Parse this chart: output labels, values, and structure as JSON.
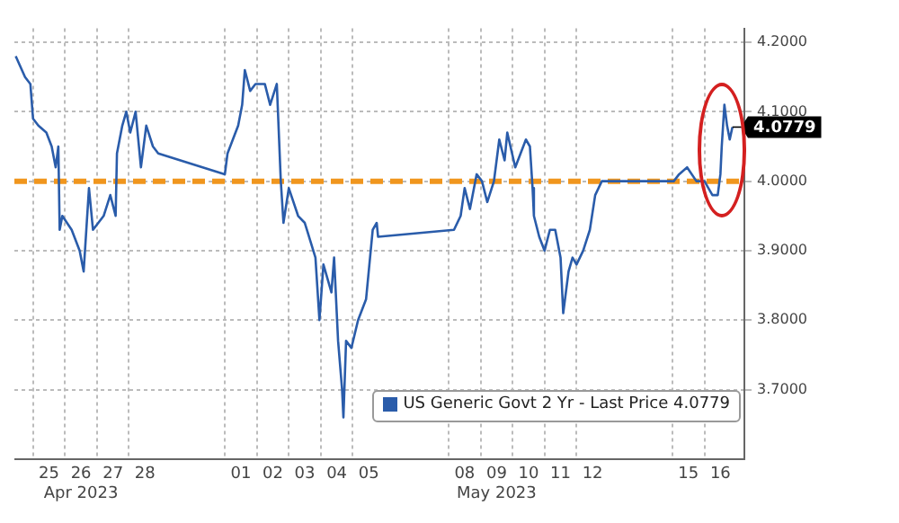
{
  "chart_data": {
    "type": "line",
    "x": [
      "2023-04-24T11:00",
      "2023-04-24T18:00",
      "2023-04-24T22:00",
      "2023-04-25T00:00",
      "2023-04-25T04:00",
      "2023-04-25T10:00",
      "2023-04-25T14:00",
      "2023-04-25T17:00",
      "2023-04-25T19:00",
      "2023-04-25T20:00",
      "2023-04-25T22:00",
      "2023-04-26T05:00",
      "2023-04-26T11:00",
      "2023-04-26T14:00",
      "2023-04-26T18:00",
      "2023-04-26T21:00",
      "2023-04-27T05:00",
      "2023-04-27T10:00",
      "2023-04-27T14:00",
      "2023-04-27T15:00",
      "2023-04-27T19:00",
      "2023-04-27T22:00",
      "2023-04-28T01:00",
      "2023-04-28T05:00",
      "2023-04-28T09:00",
      "2023-04-28T13:00",
      "2023-04-28T18:00",
      "2023-04-28T22:00",
      "2023-05-01T00:00",
      "2023-05-01T02:00",
      "2023-05-01T06:00",
      "2023-05-01T10:00",
      "2023-05-01T13:00",
      "2023-05-01T15:00",
      "2023-05-01T19:00",
      "2023-05-01T23:00",
      "2023-05-02T06:00",
      "2023-05-02T10:00",
      "2023-05-02T15:00",
      "2023-05-02T18:00",
      "2023-05-02T20:00",
      "2023-05-03T00:00",
      "2023-05-03T07:00",
      "2023-05-03T12:00",
      "2023-05-03T20:00",
      "2023-05-03T23:00",
      "2023-05-04T02:00",
      "2023-05-04T08:00",
      "2023-05-04T10:00",
      "2023-05-04T13:00",
      "2023-05-04T16:00",
      "2023-05-04T17:00",
      "2023-05-04T19:00",
      "2023-05-04T23:00",
      "2023-05-05T04:00",
      "2023-05-05T10:00",
      "2023-05-05T15:00",
      "2023-05-05T18:00",
      "2023-05-05T19:00",
      "2023-05-08T04:00",
      "2023-05-08T09:00",
      "2023-05-08T12:00",
      "2023-05-08T16:00",
      "2023-05-08T21:00",
      "2023-05-09T01:00",
      "2023-05-09T05:00",
      "2023-05-09T10:00",
      "2023-05-09T14:00",
      "2023-05-09T18:00",
      "2023-05-09T20:00",
      "2023-05-10T02:00",
      "2023-05-10T06:00",
      "2023-05-10T10:00",
      "2023-05-10T13:00",
      "2023-05-10T15:00",
      "2023-05-10T16:00",
      "2023-05-10T20:00",
      "2023-05-11T00:00",
      "2023-05-11T04:00",
      "2023-05-11T08:00",
      "2023-05-11T12:00",
      "2023-05-11T14:00",
      "2023-05-11T18:00",
      "2023-05-11T21:00",
      "2023-05-12T00:00",
      "2023-05-12T05:00",
      "2023-05-12T10:00",
      "2023-05-12T14:00",
      "2023-05-12T19:00",
      "2023-05-15T01:00",
      "2023-05-15T05:00",
      "2023-05-15T11:00",
      "2023-05-15T18:00",
      "2023-05-16T00:00",
      "2023-05-16T06:00",
      "2023-05-16T10:00",
      "2023-05-16T12:00",
      "2023-05-16T13:00",
      "2023-05-16T15:00",
      "2023-05-16T17:00",
      "2023-05-16T19:00",
      "2023-05-16T21:00"
    ],
    "series": [
      {
        "name": "US Generic Govt 2 Yr - Last Price 4.0779",
        "color": "#2a5caa",
        "values": [
          4.18,
          4.15,
          4.14,
          4.09,
          4.08,
          4.07,
          4.05,
          4.02,
          4.05,
          3.93,
          3.95,
          3.93,
          3.9,
          3.87,
          3.99,
          3.93,
          3.95,
          3.98,
          3.95,
          4.04,
          4.08,
          4.1,
          4.07,
          4.1,
          4.02,
          4.08,
          4.05,
          4.04,
          4.01,
          4.04,
          4.06,
          4.08,
          4.11,
          4.16,
          4.13,
          4.14,
          4.14,
          4.11,
          4.14,
          4.0,
          3.94,
          3.99,
          3.95,
          3.94,
          3.89,
          3.8,
          3.88,
          3.84,
          3.89,
          3.77,
          3.7,
          3.66,
          3.77,
          3.76,
          3.8,
          3.83,
          3.93,
          3.94,
          3.92,
          3.93,
          3.95,
          3.99,
          3.96,
          4.01,
          4.0,
          3.97,
          4.0,
          4.06,
          4.03,
          4.07,
          4.02,
          4.04,
          4.06,
          4.05,
          3.99,
          3.95,
          3.92,
          3.9,
          3.93,
          3.93,
          3.89,
          3.81,
          3.87,
          3.89,
          3.88,
          3.9,
          3.93,
          3.98,
          4.0,
          4.0,
          4.01,
          4.02,
          4.0,
          4.0,
          3.98,
          3.98,
          4.01,
          4.05,
          4.11,
          4.08,
          4.06,
          4.0779
        ]
      }
    ],
    "xlim": [
      "2023-04-24T10:00",
      "2023-05-17T06:00"
    ],
    "xticks": [
      {
        "value": "2023-04-25T00:00",
        "label": null
      },
      {
        "value": "2023-04-25T12:00",
        "label": "25"
      },
      {
        "value": "2023-04-26T00:00",
        "label": null
      },
      {
        "value": "2023-04-26T12:00",
        "label": "26\nApr 2023"
      },
      {
        "value": "2023-04-27T00:00",
        "label": null
      },
      {
        "value": "2023-04-27T12:00",
        "label": "27"
      },
      {
        "value": "2023-04-28T00:00",
        "label": null
      },
      {
        "value": "2023-04-28T12:00",
        "label": "28"
      },
      {
        "value": "2023-05-01T00:00",
        "label": null
      },
      {
        "value": "2023-05-01T12:00",
        "label": "01"
      },
      {
        "value": "2023-05-02T00:00",
        "label": null
      },
      {
        "value": "2023-05-02T12:00",
        "label": "02"
      },
      {
        "value": "2023-05-03T00:00",
        "label": null
      },
      {
        "value": "2023-05-03T12:00",
        "label": "03"
      },
      {
        "value": "2023-05-04T00:00",
        "label": null
      },
      {
        "value": "2023-05-04T12:00",
        "label": "04"
      },
      {
        "value": "2023-05-05T00:00",
        "label": null
      },
      {
        "value": "2023-05-05T12:00",
        "label": "05"
      },
      {
        "value": "2023-05-08T00:00",
        "label": null
      },
      {
        "value": "2023-05-08T12:00",
        "label": "08"
      },
      {
        "value": "2023-05-09T00:00",
        "label": null
      },
      {
        "value": "2023-05-09T12:00",
        "label": "09\nMay 2023"
      },
      {
        "value": "2023-05-10T00:00",
        "label": null
      },
      {
        "value": "2023-05-10T12:00",
        "label": "10"
      },
      {
        "value": "2023-05-11T00:00",
        "label": null
      },
      {
        "value": "2023-05-11T12:00",
        "label": "11"
      },
      {
        "value": "2023-05-12T00:00",
        "label": null
      },
      {
        "value": "2023-05-12T12:00",
        "label": "12"
      },
      {
        "value": "2023-05-15T00:00",
        "label": null
      },
      {
        "value": "2023-05-15T12:00",
        "label": "15"
      },
      {
        "value": "2023-05-16T00:00",
        "label": null
      },
      {
        "value": "2023-05-16T12:00",
        "label": "16"
      }
    ],
    "ylim": [
      3.6,
      4.22
    ],
    "yticks": [
      {
        "value": 3.7,
        "label": "3.7000"
      },
      {
        "value": 3.8,
        "label": "3.8000"
      },
      {
        "value": 3.9,
        "label": "3.9000"
      },
      {
        "value": 4.0,
        "label": "4.0000"
      },
      {
        "value": 4.1,
        "label": "4.1000"
      },
      {
        "value": 4.2,
        "label": "4.2000"
      }
    ],
    "ref_lines": [
      {
        "axis": "y",
        "value": 4.0,
        "color": "#f0961e",
        "line_style": "dashed"
      }
    ],
    "annotations": [
      {
        "text": "4.0779",
        "x": "2023-05-16T21:00",
        "y": 4.0779
      }
    ],
    "grid": true,
    "legend": "bottom right",
    "marker": "none",
    "line_style": "solid"
  }
}
